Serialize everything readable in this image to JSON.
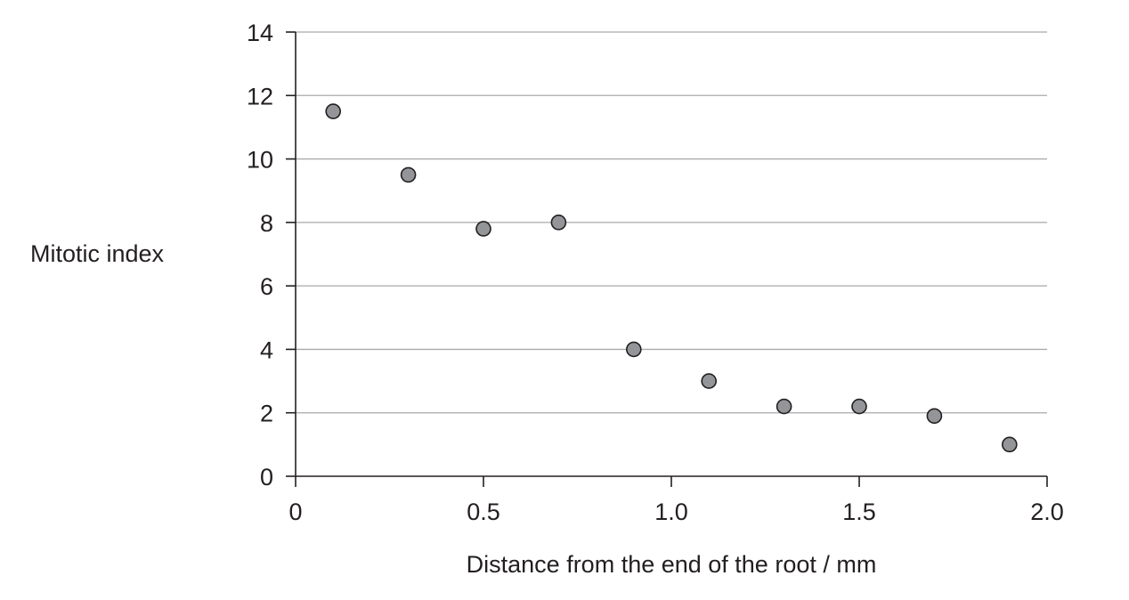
{
  "colors": {
    "point_fill": "#939598",
    "point_stroke": "#231f20",
    "gridline": "#a7a9ac",
    "axis": "#231f20",
    "text": "#231f20"
  },
  "chart_data": {
    "type": "scatter",
    "title": "",
    "xlabel": "Distance from the end of the root / mm",
    "ylabel": "Mitotic index",
    "xlim": [
      0,
      2.0
    ],
    "ylim": [
      0,
      14
    ],
    "x_ticks": [
      0,
      0.5,
      1.0,
      1.5,
      2.0
    ],
    "x_tick_labels": [
      "0",
      "0.5",
      "1.0",
      "1.5",
      "2.0"
    ],
    "y_ticks": [
      0,
      2,
      4,
      6,
      8,
      10,
      12,
      14
    ],
    "y_tick_labels": [
      "0",
      "2",
      "4",
      "6",
      "8",
      "10",
      "12",
      "14"
    ],
    "grid": "horizontal",
    "legend": "none",
    "points": [
      {
        "x": 0.1,
        "y": 11.5
      },
      {
        "x": 0.3,
        "y": 9.5
      },
      {
        "x": 0.5,
        "y": 7.8
      },
      {
        "x": 0.7,
        "y": 8.0
      },
      {
        "x": 0.9,
        "y": 4.0
      },
      {
        "x": 1.1,
        "y": 3.0
      },
      {
        "x": 1.3,
        "y": 2.2
      },
      {
        "x": 1.5,
        "y": 2.2
      },
      {
        "x": 1.7,
        "y": 1.9
      },
      {
        "x": 1.9,
        "y": 1.0
      }
    ]
  }
}
